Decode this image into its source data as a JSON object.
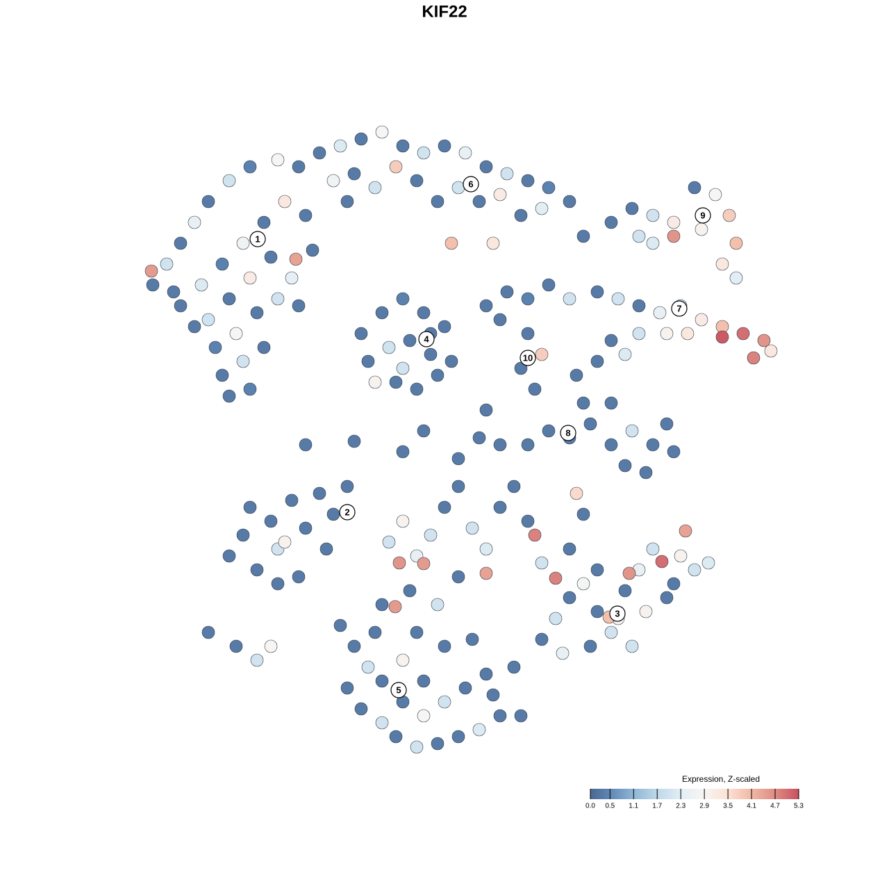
{
  "chart_data": {
    "type": "scatter",
    "title": "KIF22",
    "xlim": [
      0,
      128
    ],
    "ylim": [
      0,
      128
    ],
    "x": [
      22,
      24,
      26,
      28,
      30,
      33,
      36,
      40,
      43,
      26,
      29,
      32,
      35,
      38,
      41,
      44,
      30,
      33,
      36,
      39,
      42,
      45,
      31,
      34,
      37,
      40,
      43,
      32,
      35,
      38,
      33,
      36,
      21.8,
      42.6,
      25,
      28,
      46,
      49,
      52,
      55,
      58,
      61,
      64,
      67,
      70,
      73,
      76,
      79,
      82,
      48,
      51,
      54,
      57,
      60,
      63,
      66,
      69,
      72,
      75,
      78,
      65,
      71,
      84,
      50,
      52,
      55,
      58,
      61,
      64,
      53,
      56,
      59,
      62,
      65,
      54,
      57,
      60,
      63,
      58,
      62,
      70,
      73,
      76,
      79,
      82,
      76,
      78,
      75,
      77,
      72,
      88,
      91,
      94,
      97,
      100,
      103,
      105,
      106,
      104,
      97,
      92,
      101,
      94,
      106,
      86,
      89,
      92,
      95,
      98,
      101,
      104,
      107,
      110,
      111,
      108.5,
      104,
      99,
      96,
      92,
      88,
      86,
      90,
      83,
      84,
      85,
      88,
      91,
      94,
      97,
      90,
      93,
      96,
      79,
      82,
      76,
      72,
      88,
      44,
      51,
      58,
      61,
      66,
      69,
      70,
      33,
      35,
      37,
      36,
      39,
      40,
      42,
      44,
      46,
      48,
      50,
      47,
      43,
      40,
      30,
      34,
      37,
      39,
      41,
      56,
      58,
      60,
      57.5,
      62,
      64,
      66,
      68,
      70,
      72,
      74,
      76,
      77,
      78,
      80,
      70,
      61,
      82,
      84,
      83,
      66,
      59,
      63,
      55,
      78,
      80,
      82,
      84,
      86,
      88,
      90,
      92,
      94,
      96,
      98,
      100,
      102,
      95.3,
      90.6,
      89,
      87.7,
      91,
      93,
      97,
      85,
      81,
      98.7,
      86,
      49,
      51,
      53,
      50,
      52,
      55,
      57,
      60,
      63,
      66,
      69,
      72,
      75,
      55,
      58,
      61,
      64,
      67,
      70,
      60,
      64,
      56.9,
      68,
      71,
      74,
      61,
      54,
      58
    ],
    "y": [
      87,
      90,
      93,
      96,
      99,
      102,
      104,
      105,
      104,
      84,
      87,
      90,
      93,
      96,
      99,
      97,
      82,
      85,
      88,
      91,
      88,
      92,
      78,
      80,
      83,
      85,
      84,
      74,
      76,
      78,
      71,
      72,
      89,
      90.7,
      86,
      81,
      106,
      107,
      108,
      109,
      107,
      106,
      107,
      106,
      104,
      103,
      102,
      101,
      99,
      102,
      103,
      101,
      104,
      102,
      99,
      101,
      99,
      100,
      97,
      98,
      93,
      93,
      94,
      99,
      80,
      83,
      85,
      83,
      81,
      76,
      78,
      79,
      77,
      76,
      73,
      73,
      72,
      74,
      75,
      80,
      84,
      86,
      85,
      87,
      85,
      80,
      77,
      75,
      72,
      82,
      96,
      98,
      97,
      96,
      101,
      100,
      97,
      93,
      90,
      94,
      94,
      95,
      93,
      88,
      86,
      85,
      84,
      83,
      84,
      82,
      81,
      80,
      79,
      77.5,
      76.5,
      79.5,
      80,
      80,
      80,
      79,
      76,
      77,
      74,
      70,
      67,
      64,
      66,
      64,
      63,
      61,
      60,
      67,
      66,
      65,
      64,
      64,
      70,
      64,
      64.5,
      63,
      66,
      62,
      65,
      69,
      48,
      51,
      46,
      55,
      53,
      49,
      56,
      52,
      57,
      54,
      58,
      49,
      45,
      44,
      37,
      35,
      33,
      35,
      50,
      50,
      53,
      48,
      47,
      51,
      55,
      58,
      52,
      49,
      55,
      58,
      53,
      51,
      47,
      44.8,
      45.5,
      46.9,
      49,
      54,
      57,
      45,
      43,
      41,
      41,
      36,
      39,
      42,
      44,
      40,
      37,
      43,
      46,
      49,
      42,
      48,
      46,
      47,
      47.2,
      45.5,
      39,
      39.2,
      35,
      40,
      44,
      35,
      34,
      51.6,
      46,
      38,
      35,
      32,
      29,
      26,
      24,
      22,
      20.5,
      21,
      22,
      23,
      25,
      25,
      30,
      33,
      30,
      27,
      29,
      31,
      37,
      35,
      40.7,
      36,
      28,
      32,
      25,
      37,
      27
    ],
    "values": [
      0.3,
      2,
      0.3,
      2.5,
      0.3,
      2,
      0.4,
      2.9,
      0.3,
      0.3,
      2.2,
      0.4,
      2.7,
      0.3,
      3.3,
      0.3,
      2,
      0.3,
      3.2,
      0.3,
      2.4,
      0.3,
      0.4,
      2.9,
      0.3,
      2,
      0.3,
      0.3,
      2,
      0.3,
      0.3,
      0.4,
      4.5,
      4.4,
      0.3,
      0.3,
      0.3,
      2.2,
      0.3,
      2.9,
      0.3,
      2,
      0.3,
      2.5,
      0.3,
      2,
      0.3,
      0.4,
      0.3,
      2.7,
      0.3,
      2,
      3.8,
      0.3,
      0.3,
      2,
      0.3,
      3.2,
      0.3,
      2.3,
      4,
      3.3,
      0.3,
      0.3,
      0.3,
      0.3,
      0.4,
      0.3,
      0.3,
      0.3,
      2,
      0.3,
      0.3,
      0.3,
      3,
      0.3,
      0.3,
      0.3,
      2,
      0.3,
      0.3,
      0.3,
      0.4,
      0.3,
      2,
      0.3,
      3.8,
      0.3,
      0.3,
      0.3,
      0.3,
      0.3,
      2,
      3.2,
      0.3,
      2.9,
      3.8,
      4,
      3.3,
      4.6,
      2,
      3,
      2.2,
      2.3,
      0.3,
      2,
      0.3,
      2.5,
      2,
      3.2,
      4,
      5,
      4.6,
      3.3,
      4.8,
      5.2,
      3.3,
      3,
      2,
      0.3,
      0.3,
      2.2,
      0.3,
      0.3,
      0.3,
      0.3,
      2,
      0.3,
      0.3,
      0.3,
      0.3,
      0.3,
      0.3,
      0.3,
      0.3,
      0.3,
      0.3,
      0.3,
      0.3,
      0.3,
      0.3,
      0.3,
      0.3,
      0.3,
      0.3,
      0.3,
      0.3,
      0.3,
      0.3,
      2,
      0.3,
      0.3,
      0.3,
      0.3,
      0.3,
      0.3,
      0.3,
      0.3,
      0.3,
      0.3,
      2,
      2.9,
      3,
      2,
      3,
      2.5,
      4.6,
      2,
      0.3,
      0.3,
      2,
      2.2,
      0.3,
      0.3,
      0.3,
      4.8,
      2,
      4.8,
      4.4,
      4.5,
      0.3,
      0.3,
      3.6,
      0.3,
      0.3,
      2,
      0.3,
      0.3,
      2,
      0.3,
      2.8,
      0.3,
      2,
      0.3,
      2.5,
      2,
      0.3,
      3,
      2,
      2.2,
      5,
      4.6,
      2.9,
      4,
      2,
      3,
      0.3,
      0.3,
      2.5,
      4.4,
      0.3,
      0.3,
      0.3,
      2,
      0.3,
      0.3,
      2,
      0.3,
      2,
      0.3,
      0.3,
      2.2,
      0.3,
      0.3,
      0.3,
      3,
      0.3,
      2,
      0.3,
      0.3,
      0.3,
      0.3,
      4.5,
      0.3,
      0.3,
      0.3,
      2.9,
      0.3,
      0.3
    ],
    "clusters": [
      {
        "label": "1",
        "x": 37.1,
        "y": 93.6
      },
      {
        "label": "2",
        "x": 50,
        "y": 54.3
      },
      {
        "label": "3",
        "x": 88.9,
        "y": 39.7
      },
      {
        "label": "4",
        "x": 61.4,
        "y": 79.2
      },
      {
        "label": "5",
        "x": 57.4,
        "y": 28.7
      },
      {
        "label": "6",
        "x": 67.8,
        "y": 101.5
      },
      {
        "label": "7",
        "x": 97.8,
        "y": 83.6
      },
      {
        "label": "8",
        "x": 81.8,
        "y": 65.7
      },
      {
        "label": "9",
        "x": 101.2,
        "y": 97
      },
      {
        "label": "10",
        "x": 76,
        "y": 76.5
      }
    ],
    "colorbar": {
      "title": "Expression, Z-scaled",
      "ticks": [
        {
          "value": 0,
          "label": "0.0"
        },
        0.5,
        1.1,
        1.7,
        2.3,
        2.9,
        3.5,
        4.1,
        4.7,
        5.3
      ],
      "colors": [
        "#4a6890",
        "#5f87b5",
        "#8fb5d6",
        "#bed8e8",
        "#e2eef4",
        "#f7f5f3",
        "#fbe1d4",
        "#f1b9a4",
        "#de8c84",
        "#c8505f"
      ]
    }
  }
}
